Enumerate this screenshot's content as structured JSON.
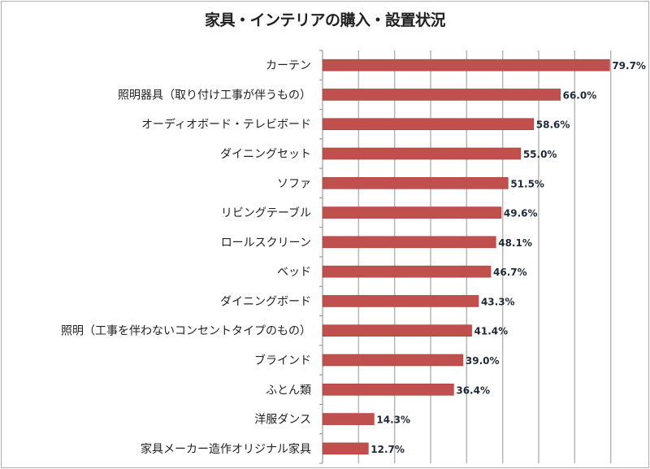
{
  "chart_data": {
    "type": "bar",
    "orientation": "horizontal",
    "title": "家具・インテリアの購入・設置状況",
    "categories": [
      "カーテン",
      "照明器具（取り付け工事が伴うもの）",
      "オーディオボード・テレビボード",
      "ダイニングセット",
      "ソファ",
      "リビングテーブル",
      "ロールスクリーン",
      "ベッド",
      "ダイニングボード",
      "照明（工事を伴わないコンセントタイプのもの）",
      "ブラインド",
      "ふとん類",
      "洋服ダンス",
      "家具メーカー造作オリジナル家具"
    ],
    "values": [
      79.7,
      66.0,
      58.6,
      55.0,
      51.5,
      49.6,
      48.1,
      46.7,
      43.3,
      41.4,
      39.0,
      36.4,
      14.3,
      12.7
    ],
    "data_labels": [
      "79.7%",
      "66.0%",
      "58.6%",
      "55.0%",
      "51.5%",
      "49.6%",
      "48.1%",
      "46.7%",
      "43.3%",
      "41.4%",
      "39.0%",
      "36.4%",
      "14.3%",
      "12.7%"
    ],
    "xlim": [
      0,
      90
    ],
    "grid_step": 10,
    "grid": true,
    "xlabel": "",
    "ylabel": "",
    "bar_color": "#c0504d",
    "legend": "none"
  }
}
